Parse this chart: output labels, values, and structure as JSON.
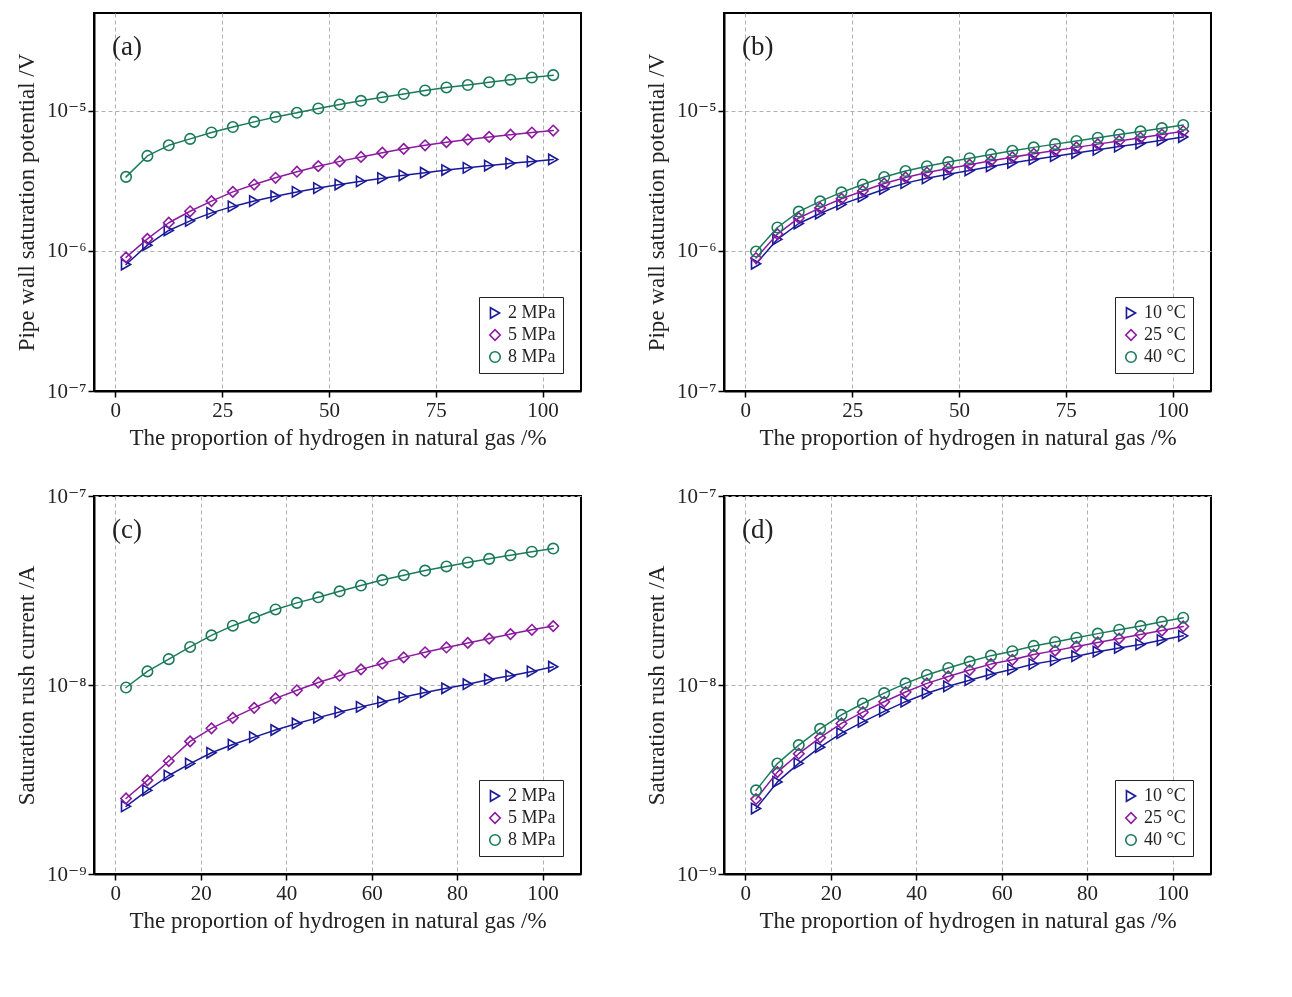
{
  "chart_data": [
    {
      "type": "line",
      "xlabel": "The proportion of hydrogen in natural gas /%",
      "ylabel": "Pipe wall saturation potential /V",
      "annotations": [
        "(a)"
      ],
      "log": "y",
      "grid": true,
      "legend": "bottom right",
      "xlim": [
        -5,
        109
      ],
      "xticks": [
        0,
        25,
        50,
        75,
        100
      ],
      "ylim": [
        1e-07,
        5e-05
      ],
      "yticks": [
        {
          "value": 1e-07,
          "label": "10⁻⁷"
        },
        {
          "value": 1e-06,
          "label": "10⁻⁶"
        },
        {
          "value": 1e-05,
          "label": "10⁻⁵"
        }
      ],
      "x": [
        2.5,
        7.5,
        12.5,
        17.5,
        22.5,
        27.5,
        32.5,
        37.5,
        42.5,
        47.5,
        52.5,
        57.5,
        62.5,
        67.5,
        72.5,
        77.5,
        82.5,
        87.5,
        92.5,
        97.5,
        102.5
      ],
      "series": [
        {
          "name": "2 MPa",
          "color": "#1a1a99",
          "marker": "triangle",
          "values": [
            8e-07,
            1.1e-06,
            1.4e-06,
            1.64e-06,
            1.87e-06,
            2.08e-06,
            2.27e-06,
            2.46e-06,
            2.64e-06,
            2.81e-06,
            2.98e-06,
            3.14e-06,
            3.31e-06,
            3.47e-06,
            3.62e-06,
            3.78e-06,
            3.92e-06,
            4.07e-06,
            4.22e-06,
            4.36e-06,
            4.5e-06
          ]
        },
        {
          "name": "5 MPa",
          "color": "#8b1a9f",
          "marker": "diamond",
          "values": [
            9e-07,
            1.22e-06,
            1.59e-06,
            1.92e-06,
            2.27e-06,
            2.64e-06,
            2.98e-06,
            3.33e-06,
            3.68e-06,
            4.03e-06,
            4.36e-06,
            4.69e-06,
            5.03e-06,
            5.36e-06,
            5.68e-06,
            5.98e-06,
            6.24e-06,
            6.52e-06,
            6.76e-06,
            7.01e-06,
            7.24e-06
          ]
        },
        {
          "name": "8 MPa",
          "color": "#1b7a5b",
          "marker": "circle",
          "values": [
            3.38e-06,
            4.77e-06,
            5.68e-06,
            6.31e-06,
            7.01e-06,
            7.67e-06,
            8.35e-06,
            9.04e-06,
            9.69e-06,
            1.04e-05,
            1.11e-05,
            1.18e-05,
            1.25e-05,
            1.32e-05,
            1.4e-05,
            1.47e-05,
            1.53e-05,
            1.6e-05,
            1.67e-05,
            1.73e-05,
            1.8e-05
          ]
        }
      ]
    },
    {
      "type": "line",
      "xlabel": "The proportion of hydrogen in natural gas /%",
      "ylabel": "Pipe wall saturation potential /V",
      "annotations": [
        "(b)"
      ],
      "log": "y",
      "grid": true,
      "legend": "bottom right",
      "xlim": [
        -5,
        109
      ],
      "xticks": [
        0,
        25,
        50,
        75,
        100
      ],
      "ylim": [
        1e-07,
        5e-05
      ],
      "yticks": [
        {
          "value": 1e-07,
          "label": "10⁻⁷"
        },
        {
          "value": 1e-06,
          "label": "10⁻⁶"
        },
        {
          "value": 1e-05,
          "label": "10⁻⁵"
        }
      ],
      "x": [
        2.5,
        7.5,
        12.5,
        17.5,
        22.5,
        27.5,
        32.5,
        37.5,
        42.5,
        47.5,
        52.5,
        57.5,
        62.5,
        67.5,
        72.5,
        77.5,
        82.5,
        87.5,
        92.5,
        97.5,
        102.5
      ],
      "series": [
        {
          "name": "10 °C",
          "color": "#1a1a99",
          "marker": "triangle",
          "values": [
            8.1e-07,
            1.21e-06,
            1.57e-06,
            1.85e-06,
            2.15e-06,
            2.44e-06,
            2.76e-06,
            3.05e-06,
            3.3e-06,
            3.53e-06,
            3.76e-06,
            4.01e-06,
            4.26e-06,
            4.5e-06,
            4.75e-06,
            5e-06,
            5.27e-06,
            5.56e-06,
            5.85e-06,
            6.17e-06,
            6.51e-06
          ]
        },
        {
          "name": "25 °C",
          "color": "#8b1a9f",
          "marker": "diamond",
          "values": [
            8.9e-07,
            1.32e-06,
            1.72e-06,
            2.03e-06,
            2.36e-06,
            2.68e-06,
            3.03e-06,
            3.35e-06,
            3.63e-06,
            3.88e-06,
            4.13e-06,
            4.4e-06,
            4.67e-06,
            4.94e-06,
            5.21e-06,
            5.49e-06,
            5.79e-06,
            6.1e-06,
            6.43e-06,
            6.78e-06,
            7.15e-06
          ]
        },
        {
          "name": "40 °C",
          "color": "#1b7a5b",
          "marker": "circle",
          "values": [
            9.9e-07,
            1.47e-06,
            1.91e-06,
            2.26e-06,
            2.62e-06,
            2.98e-06,
            3.37e-06,
            3.72e-06,
            4.03e-06,
            4.31e-06,
            4.59e-06,
            4.89e-06,
            5.19e-06,
            5.49e-06,
            5.79e-06,
            6.1e-06,
            6.43e-06,
            6.78e-06,
            7.14e-06,
            7.53e-06,
            7.94e-06
          ]
        }
      ]
    },
    {
      "type": "line",
      "xlabel": "The proportion of hydrogen in natural gas /%",
      "ylabel": "Saturation rush current /A",
      "annotations": [
        "(c)"
      ],
      "log": "y",
      "grid": true,
      "legend": "bottom right",
      "xlim": [
        -5,
        109
      ],
      "xticks": [
        0,
        20,
        40,
        60,
        80,
        100
      ],
      "ylim": [
        1e-09,
        1e-07
      ],
      "yticks": [
        {
          "value": 1e-09,
          "label": "10⁻⁹"
        },
        {
          "value": 1e-08,
          "label": "10⁻⁸"
        },
        {
          "value": 1e-07,
          "label": "10⁻⁷"
        }
      ],
      "x": [
        2.5,
        7.5,
        12.5,
        17.5,
        22.5,
        27.5,
        32.5,
        37.5,
        42.5,
        47.5,
        52.5,
        57.5,
        62.5,
        67.5,
        72.5,
        77.5,
        82.5,
        87.5,
        92.5,
        97.5,
        102.5
      ],
      "series": [
        {
          "name": "2 MPa",
          "color": "#1a1a99",
          "marker": "triangle",
          "values": [
            2.28e-09,
            2.77e-09,
            3.32e-09,
            3.84e-09,
            4.38e-09,
            4.84e-09,
            5.3e-09,
            5.78e-09,
            6.26e-09,
            6.72e-09,
            7.19e-09,
            7.66e-09,
            8.13e-09,
            8.63e-09,
            9.13e-09,
            9.61e-09,
            1.01e-08,
            1.07e-08,
            1.12e-08,
            1.18e-08,
            1.25e-08
          ]
        },
        {
          "name": "5 MPa",
          "color": "#8b1a9f",
          "marker": "diamond",
          "values": [
            2.51e-09,
            3.13e-09,
            3.96e-09,
            5.03e-09,
            5.9e-09,
            6.7e-09,
            7.57e-09,
            8.5e-09,
            9.38e-09,
            1.03e-08,
            1.12e-08,
            1.21e-08,
            1.3e-08,
            1.4e-08,
            1.49e-08,
            1.58e-08,
            1.67e-08,
            1.76e-08,
            1.86e-08,
            1.96e-08,
            2.05e-08
          ]
        },
        {
          "name": "8 MPa",
          "color": "#1b7a5b",
          "marker": "circle",
          "values": [
            9.7e-09,
            1.18e-08,
            1.37e-08,
            1.59e-08,
            1.83e-08,
            2.06e-08,
            2.27e-08,
            2.51e-08,
            2.72e-08,
            2.91e-08,
            3.13e-08,
            3.36e-08,
            3.59e-08,
            3.81e-08,
            4.03e-08,
            4.24e-08,
            4.45e-08,
            4.65e-08,
            4.86e-08,
            5.07e-08,
            5.27e-08
          ]
        }
      ]
    },
    {
      "type": "line",
      "xlabel": "The proportion of hydrogen in natural gas /%",
      "ylabel": "Saturation rush current /A",
      "annotations": [
        "(d)"
      ],
      "log": "y",
      "grid": true,
      "legend": "bottom right",
      "xlim": [
        -5,
        109
      ],
      "xticks": [
        0,
        20,
        40,
        60,
        80,
        100
      ],
      "ylim": [
        1e-09,
        1e-07
      ],
      "yticks": [
        {
          "value": 1e-09,
          "label": "10⁻⁹"
        },
        {
          "value": 1e-08,
          "label": "10⁻⁸"
        },
        {
          "value": 1e-07,
          "label": "10⁻⁷"
        }
      ],
      "x": [
        2.5,
        7.5,
        12.5,
        17.5,
        22.5,
        27.5,
        32.5,
        37.5,
        42.5,
        47.5,
        52.5,
        57.5,
        62.5,
        67.5,
        72.5,
        77.5,
        82.5,
        87.5,
        92.5,
        97.5,
        102.5
      ],
      "series": [
        {
          "name": "10 °C",
          "color": "#1a1a99",
          "marker": "triangle",
          "values": [
            2.22e-09,
            3.07e-09,
            3.85e-09,
            4.69e-09,
            5.56e-09,
            6.38e-09,
            7.25e-09,
            8.16e-09,
            9.04e-09,
            9.84e-09,
            1.06e-08,
            1.14e-08,
            1.21e-08,
            1.29e-08,
            1.35e-08,
            1.42e-08,
            1.5e-08,
            1.57e-08,
            1.64e-08,
            1.73e-08,
            1.82e-08
          ]
        },
        {
          "name": "25 °C",
          "color": "#8b1a9f",
          "marker": "diamond",
          "values": [
            2.49e-09,
            3.46e-09,
            4.33e-09,
            5.27e-09,
            6.26e-09,
            7.18e-09,
            8.15e-09,
            9.18e-09,
            1.02e-08,
            1.11e-08,
            1.2e-08,
            1.29e-08,
            1.36e-08,
            1.45e-08,
            1.52e-08,
            1.6e-08,
            1.68e-08,
            1.76e-08,
            1.85e-08,
            1.94e-08,
            2.04e-08
          ]
        },
        {
          "name": "40 °C",
          "color": "#1b7a5b",
          "marker": "circle",
          "values": [
            2.77e-09,
            3.84e-09,
            4.81e-09,
            5.86e-09,
            6.95e-09,
            7.98e-09,
            9.06e-09,
            1.02e-08,
            1.13e-08,
            1.23e-08,
            1.33e-08,
            1.43e-08,
            1.51e-08,
            1.61e-08,
            1.69e-08,
            1.78e-08,
            1.87e-08,
            1.96e-08,
            2.05e-08,
            2.16e-08,
            2.27e-08
          ]
        }
      ]
    }
  ]
}
